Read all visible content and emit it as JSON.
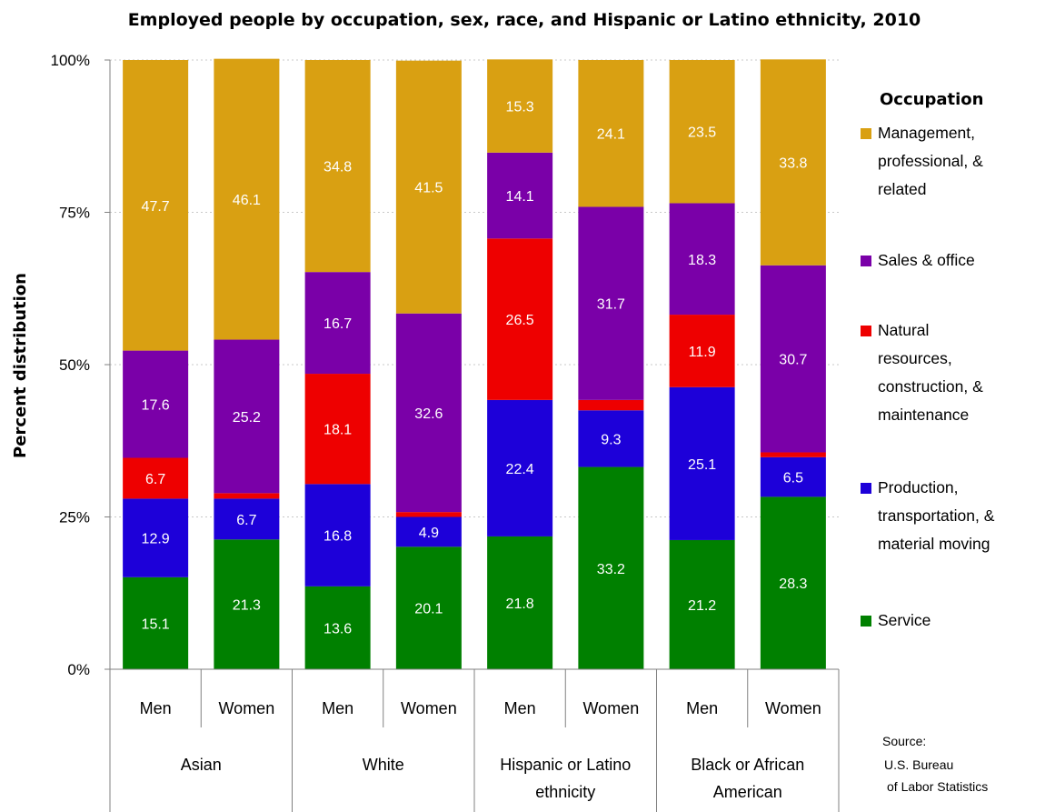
{
  "chart_data": {
    "type": "bar",
    "stacked": true,
    "title": "Employed people by occupation, sex, race, and Hispanic or Latino ethnicity, 2010",
    "ylabel": "Percent distribution",
    "ylim": [
      0,
      100
    ],
    "yticks": [
      "0%",
      "25%",
      "50%",
      "75%",
      "100%"
    ],
    "grid": true,
    "categories": [
      {
        "sub": "Men",
        "group": "Asian"
      },
      {
        "sub": "Women",
        "group": "Asian"
      },
      {
        "sub": "Men",
        "group": "White"
      },
      {
        "sub": "Women",
        "group": "White"
      },
      {
        "sub": "Men",
        "group": "Hispanic or Latino ethnicity"
      },
      {
        "sub": "Women",
        "group": "Hispanic or Latino ethnicity"
      },
      {
        "sub": "Men",
        "group": "Black or African American"
      },
      {
        "sub": "Women",
        "group": "Black or African American"
      }
    ],
    "groups": [
      {
        "lines": [
          "Asian"
        ]
      },
      {
        "lines": [
          "White"
        ]
      },
      {
        "lines": [
          "Hispanic or Latino",
          "ethnicity"
        ]
      },
      {
        "lines": [
          "Black or African",
          "American"
        ]
      }
    ],
    "series": [
      {
        "name": "Service",
        "legend_lines": [
          "Service"
        ],
        "color": "#008000",
        "label_color": "#ffffff",
        "values": [
          15.1,
          21.3,
          13.6,
          20.1,
          21.8,
          33.2,
          21.2,
          28.3
        ],
        "labels": [
          "15.1",
          "21.3",
          "13.6",
          "20.1",
          "21.8",
          "33.2",
          "21.2",
          "28.3"
        ]
      },
      {
        "name": "Production, transportation, & material moving",
        "legend_lines": [
          "Production,",
          "transportation, &",
          "material moving"
        ],
        "color": "#1d00d9",
        "label_color": "#ffffff",
        "values": [
          12.9,
          6.7,
          16.8,
          4.9,
          22.4,
          9.3,
          25.1,
          6.5
        ],
        "labels": [
          "12.9",
          "6.7",
          "16.8",
          "4.9",
          "22.4",
          "9.3",
          "25.1",
          "6.5"
        ]
      },
      {
        "name": "Natural resources, construction, & maintenance",
        "legend_lines": [
          "Natural",
          "resources,",
          "construction, &",
          "maintenance"
        ],
        "color": "#ee0000",
        "label_color": "#ffffff",
        "values": [
          6.7,
          0.9,
          18.1,
          0.8,
          26.5,
          1.7,
          11.9,
          0.8
        ],
        "labels": [
          "6.7",
          "",
          "18.1",
          "",
          "26.5",
          "",
          "11.9",
          ""
        ]
      },
      {
        "name": "Sales & office",
        "legend_lines": [
          "Sales & office"
        ],
        "color": "#7a00a8",
        "label_color": "#ffffff",
        "values": [
          17.6,
          25.2,
          16.7,
          32.6,
          14.1,
          31.7,
          18.3,
          30.7
        ],
        "labels": [
          "17.6",
          "25.2",
          "16.7",
          "32.6",
          "14.1",
          "31.7",
          "18.3",
          "30.7"
        ]
      },
      {
        "name": "Management, professional, & related",
        "legend_lines": [
          "Management,",
          "professional, &",
          "related"
        ],
        "color": "#d9a012",
        "label_color": "#ffffff",
        "values": [
          47.7,
          46.1,
          34.8,
          41.5,
          15.3,
          24.1,
          23.5,
          33.8
        ],
        "labels": [
          "47.7",
          "46.1",
          "34.8",
          "41.5",
          "15.3",
          "24.1",
          "23.5",
          "33.8"
        ]
      }
    ],
    "legend": {
      "title": "Occupation",
      "placement": "right"
    },
    "source_lines": [
      "Source:",
      "U.S. Bureau",
      "of Labor Statistics"
    ]
  }
}
